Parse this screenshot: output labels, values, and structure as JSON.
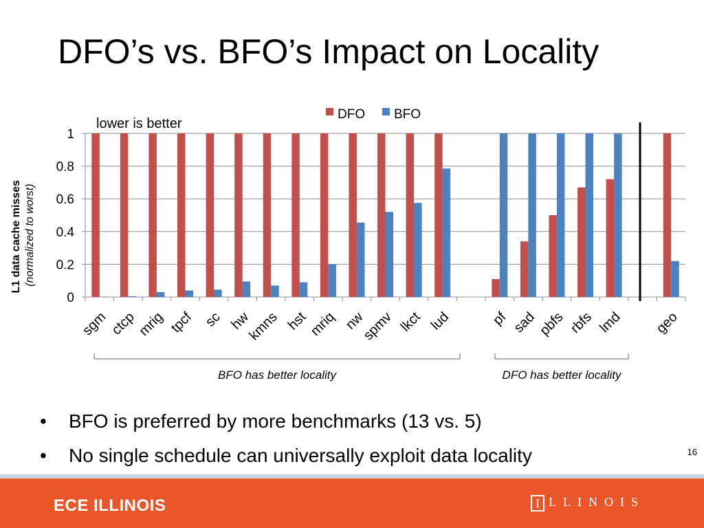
{
  "slide": {
    "title": "DFO’s vs. BFO’s Impact on Locality",
    "note": "lower is better",
    "bullets": [
      "BFO is preferred by more benchmarks (13 vs. 5)",
      "No single schedule can universally exploit data locality"
    ],
    "bullet_glyph": "•",
    "page_number": "16",
    "group_labels": [
      "BFO has better locality",
      "DFO has better locality"
    ]
  },
  "footer": {
    "left_text": "ECE ILLINOIS",
    "logo_letter": "I",
    "right_text": "LLINOIS",
    "background_color": "#E8562A"
  },
  "chart_data": {
    "type": "bar",
    "ylabel": "L1 data cache misses",
    "ylabel_sub": "normalized to worst",
    "ylim": [
      0,
      1
    ],
    "yticks": [
      "0",
      "0.2",
      "0.4",
      "0.6",
      "0.8",
      "1"
    ],
    "ytick_values": [
      0,
      0.2,
      0.4,
      0.6,
      0.8,
      1
    ],
    "grid": true,
    "legend_position": "top",
    "categories": [
      "sgm",
      "ctcp",
      "mrig",
      "tpcf",
      "sc",
      "hw",
      "kmns",
      "hst",
      "mriq",
      "nw",
      "spmv",
      "lkct",
      "lud",
      "",
      "pf",
      "sad",
      "pbfs",
      "rbfs",
      "lmd",
      "",
      "geo"
    ],
    "series": [
      {
        "name": "DFO",
        "color": "#C0504D",
        "values": [
          1,
          1,
          1,
          1,
          1,
          1,
          1,
          1,
          1,
          1,
          1,
          1,
          1,
          null,
          0.11,
          0.34,
          0.5,
          0.67,
          0.72,
          null,
          1
        ]
      },
      {
        "name": "BFO",
        "color": "#4F81BD",
        "values": [
          0.002,
          0.005,
          0.03,
          0.04,
          0.045,
          0.095,
          0.07,
          0.09,
          0.2,
          0.455,
          0.52,
          0.575,
          0.785,
          null,
          1,
          1,
          1,
          1,
          1,
          null,
          0.22
        ]
      }
    ]
  }
}
